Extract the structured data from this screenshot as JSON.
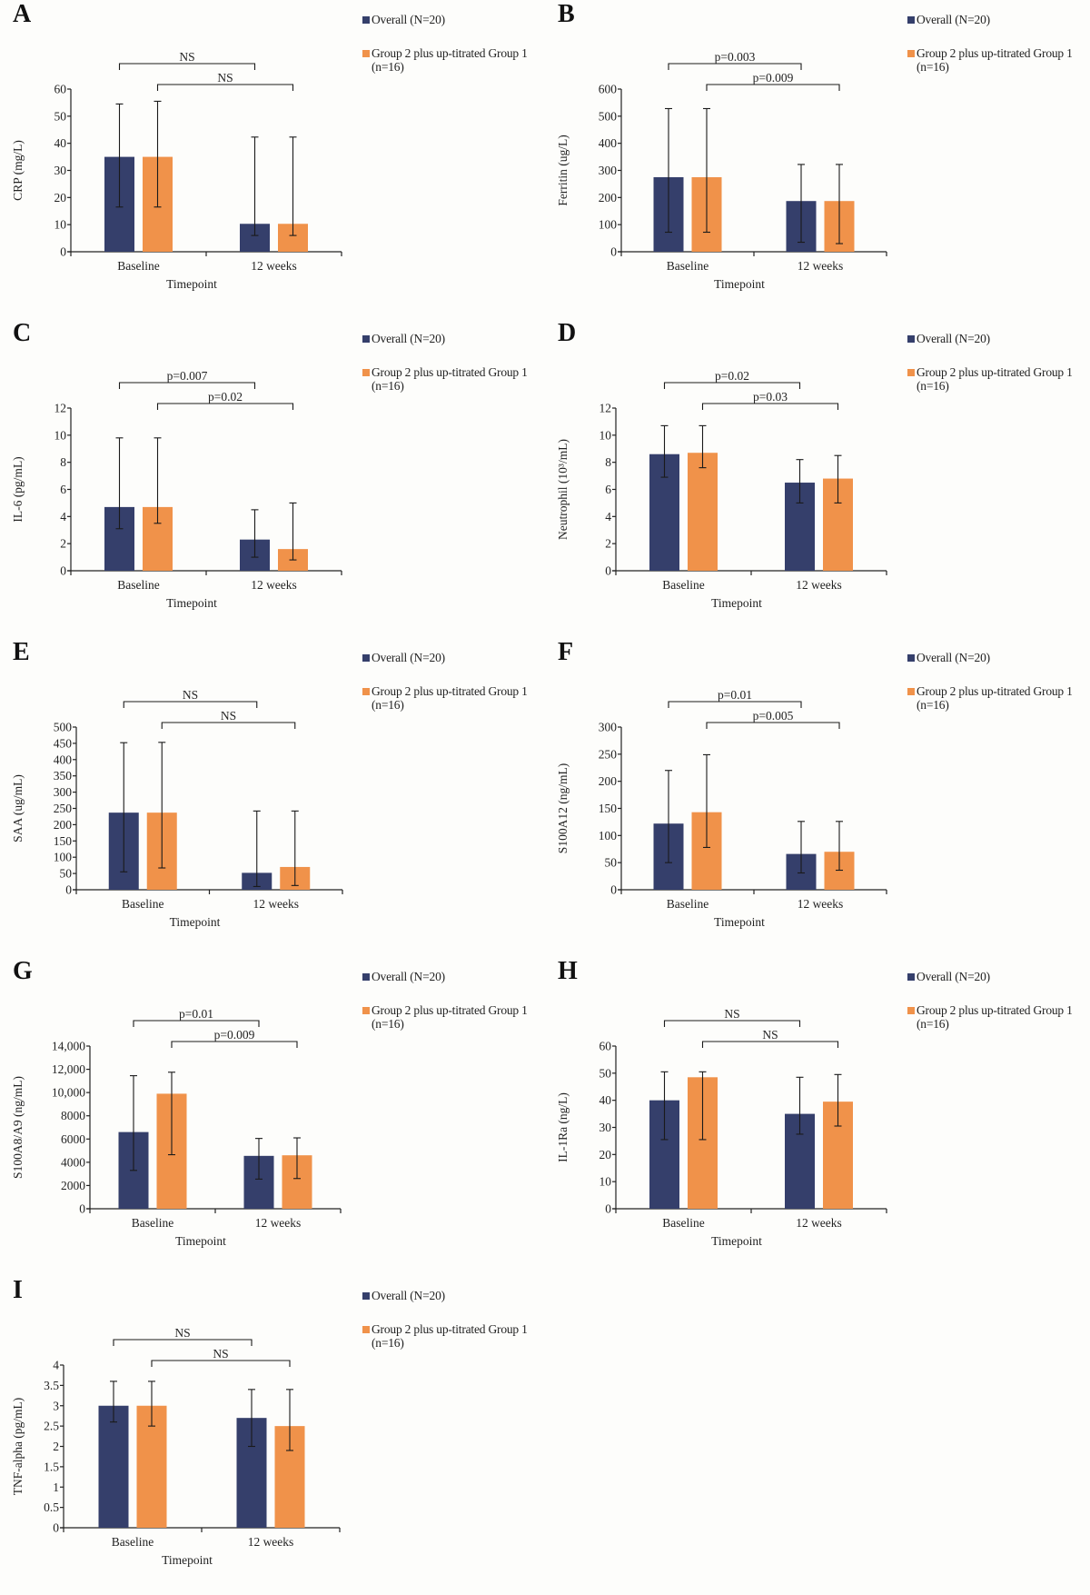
{
  "figure": {
    "legend": {
      "overall_label": "Overall (N=20)",
      "group_label": "Group 2 plus up-titrated Group 1 (n=16)"
    },
    "colors": {
      "overall": "#353f6b",
      "group": "#f0924a",
      "axis": "#222222"
    }
  },
  "chart_data": [
    {
      "panel": "A",
      "type": "bar",
      "ylabel": "CRP (mg/L)",
      "xlabel": "Timepoint",
      "categories": [
        "Baseline",
        "12 weeks"
      ],
      "ylim": [
        0,
        60
      ],
      "yticks": [
        0,
        10,
        20,
        30,
        40,
        50,
        60
      ],
      "ytick_labels": [
        "0",
        "10",
        "20",
        "30",
        "40",
        "50",
        "60"
      ],
      "series": [
        {
          "name": "Overall (N=20)",
          "values": [
            35,
            10.3
          ],
          "err_low": [
            16.5,
            6
          ],
          "err_high": [
            54.5,
            42.3
          ]
        },
        {
          "name": "Group 2 plus up-titrated Group 1 (n=16)",
          "values": [
            35,
            10.3
          ],
          "err_low": [
            16.5,
            6
          ],
          "err_high": [
            55.5,
            42.3
          ]
        }
      ],
      "annotations": [
        {
          "label": "NS",
          "from": "Overall Baseline",
          "to": "Overall 12 weeks"
        },
        {
          "label": "NS",
          "from": "Group Baseline",
          "to": "Group 12 weeks"
        }
      ]
    },
    {
      "panel": "B",
      "type": "bar",
      "ylabel": "Ferritin (ug/L)",
      "xlabel": "Timepoint",
      "categories": [
        "Baseline",
        "12 weeks"
      ],
      "ylim": [
        0,
        600
      ],
      "yticks": [
        0,
        100,
        200,
        300,
        400,
        500,
        600
      ],
      "ytick_labels": [
        "0",
        "100",
        "200",
        "300",
        "400",
        "500",
        "600"
      ],
      "series": [
        {
          "name": "Overall (N=20)",
          "values": [
            275,
            187
          ],
          "err_low": [
            72,
            35
          ],
          "err_high": [
            528,
            322
          ]
        },
        {
          "name": "Group 2 plus up-titrated Group 1 (n=16)",
          "values": [
            275,
            187
          ],
          "err_low": [
            72,
            30
          ],
          "err_high": [
            528,
            322
          ]
        }
      ],
      "annotations": [
        {
          "label": "p=0.003",
          "from": "Overall Baseline",
          "to": "Overall 12 weeks"
        },
        {
          "label": "p=0.009",
          "from": "Group Baseline",
          "to": "Group 12 weeks"
        }
      ]
    },
    {
      "panel": "C",
      "type": "bar",
      "ylabel": "IL-6 (pg/mL)",
      "xlabel": "Timepoint",
      "categories": [
        "Baseline",
        "12 weeks"
      ],
      "ylim": [
        0,
        12
      ],
      "yticks": [
        0,
        2,
        4,
        6,
        8,
        10,
        12
      ],
      "ytick_labels": [
        "0",
        "2",
        "4",
        "6",
        "8",
        "10",
        "12"
      ],
      "series": [
        {
          "name": "Overall (N=20)",
          "values": [
            4.7,
            2.3
          ],
          "err_low": [
            3.1,
            1.0
          ],
          "err_high": [
            9.8,
            4.5
          ]
        },
        {
          "name": "Group 2 plus up-titrated Group 1 (n=16)",
          "values": [
            4.7,
            1.6
          ],
          "err_low": [
            3.5,
            0.8
          ],
          "err_high": [
            9.8,
            5.0
          ]
        }
      ],
      "annotations": [
        {
          "label": "p=0.007",
          "from": "Overall Baseline",
          "to": "Overall 12 weeks"
        },
        {
          "label": "p=0.02",
          "from": "Group Baseline",
          "to": "Group 12 weeks"
        }
      ]
    },
    {
      "panel": "D",
      "type": "bar",
      "ylabel": "Neutrophil (10³/mL)",
      "xlabel": "Timepoint",
      "categories": [
        "Baseline",
        "12 weeks"
      ],
      "ylim": [
        0,
        12
      ],
      "yticks": [
        0,
        2,
        4,
        6,
        8,
        10,
        12
      ],
      "ytick_labels": [
        "0",
        "2",
        "4",
        "6",
        "8",
        "10",
        "12"
      ],
      "series": [
        {
          "name": "Overall (N=20)",
          "values": [
            8.6,
            6.5
          ],
          "err_low": [
            6.9,
            5.0
          ],
          "err_high": [
            10.7,
            8.2
          ]
        },
        {
          "name": "Group 2 plus up-titrated Group 1 (n=16)",
          "values": [
            8.7,
            6.8
          ],
          "err_low": [
            7.6,
            5.0
          ],
          "err_high": [
            10.7,
            8.5
          ]
        }
      ],
      "annotations": [
        {
          "label": "p=0.02",
          "from": "Overall Baseline",
          "to": "Overall 12 weeks"
        },
        {
          "label": "p=0.03",
          "from": "Group Baseline",
          "to": "Group 12 weeks"
        }
      ]
    },
    {
      "panel": "E",
      "type": "bar",
      "ylabel": "SAA (ug/mL)",
      "xlabel": "Timepoint",
      "categories": [
        "Baseline",
        "12 weeks"
      ],
      "ylim": [
        0,
        500
      ],
      "yticks": [
        0,
        50,
        100,
        150,
        200,
        250,
        300,
        350,
        400,
        450,
        500
      ],
      "ytick_labels": [
        "0",
        "50",
        "100",
        "150",
        "200",
        "250",
        "300",
        "350",
        "400",
        "450",
        "500"
      ],
      "series": [
        {
          "name": "Overall (N=20)",
          "values": [
            237,
            52
          ],
          "err_low": [
            55,
            10
          ],
          "err_high": [
            452,
            242
          ]
        },
        {
          "name": "Group 2 plus up-titrated Group 1 (n=16)",
          "values": [
            237,
            70
          ],
          "err_low": [
            67,
            13
          ],
          "err_high": [
            453,
            242
          ]
        }
      ],
      "annotations": [
        {
          "label": "NS",
          "from": "Overall Baseline",
          "to": "Overall 12 weeks"
        },
        {
          "label": "NS",
          "from": "Group Baseline",
          "to": "Group 12 weeks"
        }
      ]
    },
    {
      "panel": "F",
      "type": "bar",
      "ylabel": "S100A12 (ng/mL)",
      "xlabel": "Timepoint",
      "categories": [
        "Baseline",
        "12 weeks"
      ],
      "ylim": [
        0,
        300
      ],
      "yticks": [
        0,
        50,
        100,
        150,
        200,
        250,
        300
      ],
      "ytick_labels": [
        "0",
        "50",
        "100",
        "150",
        "200",
        "250",
        "300"
      ],
      "series": [
        {
          "name": "Overall (N=20)",
          "values": [
            122,
            66
          ],
          "err_low": [
            50,
            31
          ],
          "err_high": [
            220,
            126
          ]
        },
        {
          "name": "Group 2 plus up-titrated Group 1 (n=16)",
          "values": [
            143,
            70
          ],
          "err_low": [
            78,
            36
          ],
          "err_high": [
            249,
            126
          ]
        }
      ],
      "annotations": [
        {
          "label": "p=0.01",
          "from": "Overall Baseline",
          "to": "Overall 12 weeks"
        },
        {
          "label": "p=0.005",
          "from": "Group Baseline",
          "to": "Group 12 weeks"
        }
      ]
    },
    {
      "panel": "G",
      "type": "bar",
      "ylabel": "S100A8/A9 (ng/mL)",
      "xlabel": "Timepoint",
      "categories": [
        "Baseline",
        "12 weeks"
      ],
      "ylim": [
        0,
        14000
      ],
      "yticks": [
        0,
        2000,
        4000,
        6000,
        8000,
        10000,
        12000,
        14000
      ],
      "ytick_labels": [
        "0",
        "2000",
        "4000",
        "6000",
        "8000",
        "10,000",
        "12,000",
        "14,000"
      ],
      "series": [
        {
          "name": "Overall (N=20)",
          "values": [
            6600,
            4550
          ],
          "err_low": [
            3300,
            2550
          ],
          "err_high": [
            11450,
            6050
          ]
        },
        {
          "name": "Group 2 plus up-titrated Group 1 (n=16)",
          "values": [
            9900,
            4600
          ],
          "err_low": [
            4650,
            2600
          ],
          "err_high": [
            11750,
            6100
          ]
        }
      ],
      "annotations": [
        {
          "label": "p=0.01",
          "from": "Overall Baseline",
          "to": "Overall 12 weeks"
        },
        {
          "label": "p=0.009",
          "from": "Group Baseline",
          "to": "Group 12 weeks"
        }
      ]
    },
    {
      "panel": "H",
      "type": "bar",
      "ylabel": "IL-1Ra (ng/L)",
      "xlabel": "Timepoint",
      "categories": [
        "Baseline",
        "12 weeks"
      ],
      "ylim": [
        0,
        60
      ],
      "yticks": [
        0,
        10,
        20,
        30,
        40,
        50,
        60
      ],
      "ytick_labels": [
        "0",
        "10",
        "20",
        "30",
        "40",
        "50",
        "60"
      ],
      "series": [
        {
          "name": "Overall (N=20)",
          "values": [
            40,
            35
          ],
          "err_low": [
            25.5,
            27.5
          ],
          "err_high": [
            50.5,
            48.5
          ]
        },
        {
          "name": "Group 2 plus up-titrated Group 1 (n=16)",
          "values": [
            48.5,
            39.5
          ],
          "err_low": [
            25.5,
            30.5
          ],
          "err_high": [
            50.5,
            49.5
          ]
        }
      ],
      "annotations": [
        {
          "label": "NS",
          "from": "Overall Baseline",
          "to": "Overall 12 weeks"
        },
        {
          "label": "NS",
          "from": "Group Baseline",
          "to": "Group 12 weeks"
        }
      ]
    },
    {
      "panel": "I",
      "type": "bar",
      "ylabel": "TNF-alpha (pg/mL)",
      "xlabel": "Timepoint",
      "categories": [
        "Baseline",
        "12 weeks"
      ],
      "ylim": [
        0,
        4
      ],
      "yticks": [
        0,
        0.5,
        1,
        1.5,
        2,
        2.5,
        3,
        3.5,
        4
      ],
      "ytick_labels": [
        "0",
        "0.5",
        "1",
        "1.5",
        "2",
        "2.5",
        "3",
        "3.5",
        "4"
      ],
      "series": [
        {
          "name": "Overall (N=20)",
          "values": [
            3.0,
            2.7
          ],
          "err_low": [
            2.6,
            2.0
          ],
          "err_high": [
            3.6,
            3.4
          ]
        },
        {
          "name": "Group 2 plus up-titrated Group 1 (n=16)",
          "values": [
            3.0,
            2.5
          ],
          "err_low": [
            2.5,
            1.9
          ],
          "err_high": [
            3.6,
            3.4
          ]
        }
      ],
      "annotations": [
        {
          "label": "NS",
          "from": "Overall Baseline",
          "to": "Overall 12 weeks"
        },
        {
          "label": "NS",
          "from": "Group Baseline",
          "to": "Group 12 weeks"
        }
      ]
    }
  ]
}
